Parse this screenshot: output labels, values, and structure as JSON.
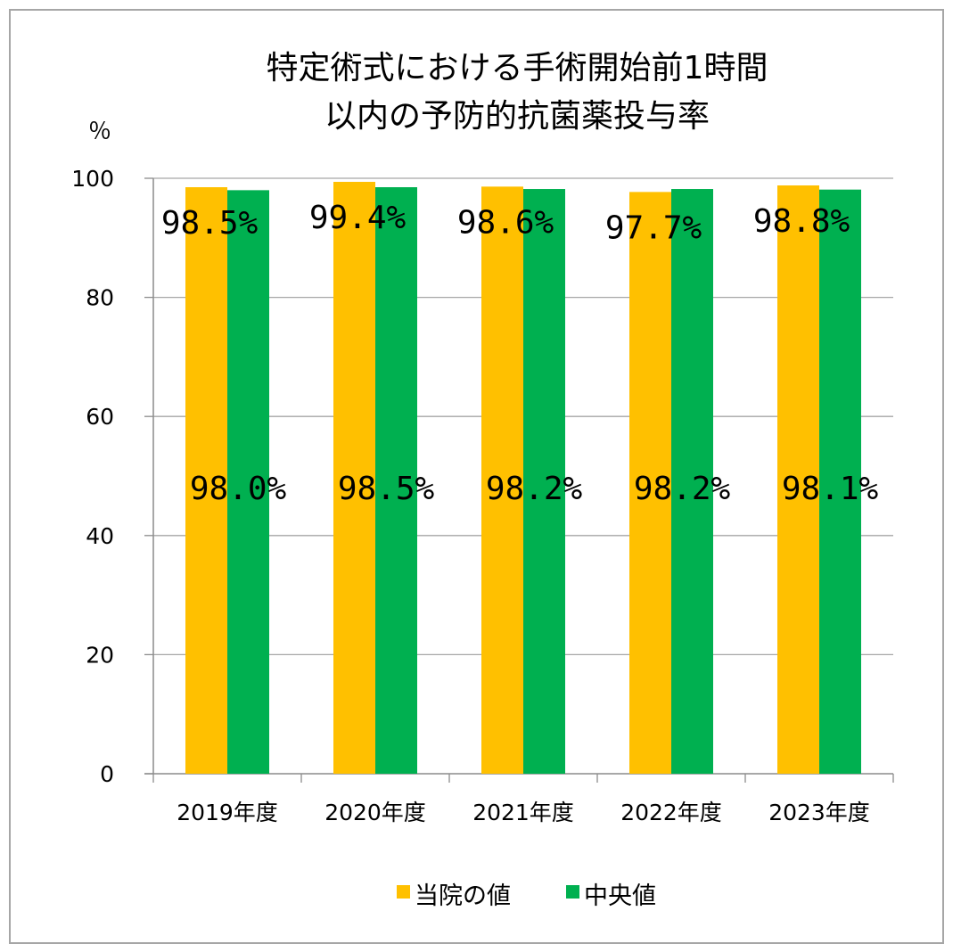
{
  "chart_data": {
    "type": "bar",
    "title_lines": [
      "特定術式における手術開始前1時間",
      "以内の予防的抗菌薬投与率"
    ],
    "ylabel": "％",
    "ylim": [
      0,
      100
    ],
    "yticks": [
      "0",
      "20",
      "40",
      "60",
      "80",
      "100"
    ],
    "grid": true,
    "legend_position": "bottom",
    "categories": [
      "2019年度",
      "2020年度",
      "2021年度",
      "2022年度",
      "2023年度"
    ],
    "series": [
      {
        "name": "当院の値",
        "color": "#FFC000",
        "values": [
          98.5,
          99.4,
          98.6,
          97.7,
          98.8
        ],
        "labels": [
          "98.5%",
          "99.4%",
          "98.6%",
          "97.7%",
          "98.8%"
        ]
      },
      {
        "name": "中央値",
        "color": "#00B050",
        "values": [
          98.0,
          98.5,
          98.2,
          98.2,
          98.1
        ],
        "labels": [
          "98.0%",
          "98.5%",
          "98.2%",
          "98.2%",
          "98.1%"
        ]
      }
    ]
  }
}
